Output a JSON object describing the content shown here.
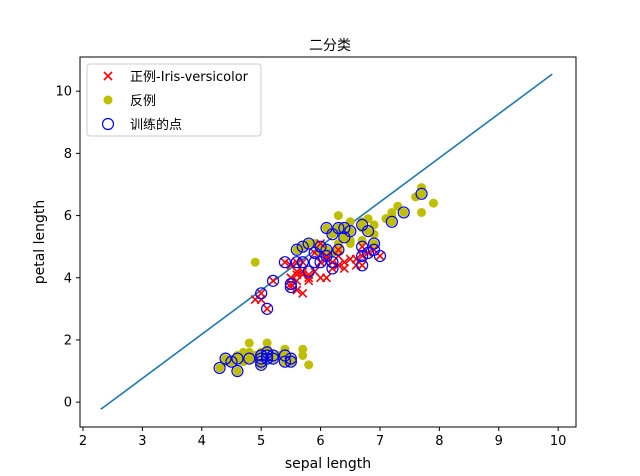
{
  "chart_data": {
    "type": "scatter",
    "title": "二分类",
    "xlabel": "sepal length",
    "ylabel": "petal length",
    "xlim": [
      1.95,
      10.3
    ],
    "ylim": [
      -0.8,
      11.1
    ],
    "xticks": [
      2,
      3,
      4,
      5,
      6,
      7,
      8,
      9,
      10
    ],
    "yticks": [
      0,
      2,
      4,
      6,
      8,
      10
    ],
    "grid": false,
    "legend_position": "top-left",
    "legend": [
      "正例-Iris-versicolor",
      "反例",
      "训练的点"
    ],
    "colors": {
      "positive": "#ff0000",
      "negative": "#bfbf00",
      "training": "#0000ff",
      "line": "#1f77b4"
    },
    "series": [
      {
        "name": "正例-Iris-versicolor",
        "marker": "x",
        "points": [
          [
            7.0,
            4.7
          ],
          [
            6.4,
            4.5
          ],
          [
            6.9,
            4.9
          ],
          [
            5.5,
            4.0
          ],
          [
            6.5,
            4.6
          ],
          [
            5.7,
            4.5
          ],
          [
            6.3,
            4.7
          ],
          [
            4.9,
            3.3
          ],
          [
            6.6,
            4.6
          ],
          [
            5.2,
            3.9
          ],
          [
            5.0,
            3.5
          ],
          [
            5.9,
            4.2
          ],
          [
            6.0,
            4.0
          ],
          [
            6.1,
            4.7
          ],
          [
            5.6,
            3.6
          ],
          [
            6.7,
            4.4
          ],
          [
            5.6,
            4.5
          ],
          [
            5.8,
            4.1
          ],
          [
            6.2,
            4.5
          ],
          [
            5.6,
            3.9
          ],
          [
            5.9,
            4.8
          ],
          [
            6.1,
            4.0
          ],
          [
            6.3,
            4.9
          ],
          [
            6.1,
            4.7
          ],
          [
            6.4,
            4.3
          ],
          [
            6.6,
            4.4
          ],
          [
            6.8,
            4.8
          ],
          [
            6.7,
            5.0
          ],
          [
            6.0,
            4.5
          ],
          [
            5.7,
            3.5
          ],
          [
            5.5,
            3.8
          ],
          [
            5.5,
            3.7
          ],
          [
            5.8,
            3.9
          ],
          [
            6.0,
            5.1
          ],
          [
            5.4,
            4.5
          ],
          [
            6.0,
            4.5
          ],
          [
            6.7,
            4.7
          ],
          [
            6.3,
            4.4
          ],
          [
            5.6,
            4.1
          ],
          [
            5.5,
            4.0
          ],
          [
            5.5,
            4.4
          ],
          [
            6.1,
            4.6
          ],
          [
            5.8,
            4.0
          ],
          [
            5.0,
            3.3
          ],
          [
            5.6,
            4.2
          ],
          [
            5.7,
            4.2
          ],
          [
            5.7,
            4.2
          ],
          [
            6.2,
            4.3
          ],
          [
            5.1,
            3.0
          ],
          [
            5.7,
            4.1
          ]
        ]
      },
      {
        "name": "反例",
        "marker": "o",
        "points": [
          [
            5.1,
            1.4
          ],
          [
            4.9,
            1.4
          ],
          [
            4.7,
            1.3
          ],
          [
            4.6,
            1.5
          ],
          [
            5.0,
            1.4
          ],
          [
            5.4,
            1.7
          ],
          [
            4.6,
            1.4
          ],
          [
            5.0,
            1.5
          ],
          [
            4.4,
            1.4
          ],
          [
            4.9,
            1.5
          ],
          [
            5.4,
            1.5
          ],
          [
            4.8,
            1.6
          ],
          [
            4.8,
            1.4
          ],
          [
            4.3,
            1.1
          ],
          [
            5.8,
            1.2
          ],
          [
            5.7,
            1.5
          ],
          [
            5.4,
            1.3
          ],
          [
            5.1,
            1.4
          ],
          [
            5.7,
            1.7
          ],
          [
            5.1,
            1.5
          ],
          [
            5.4,
            1.7
          ],
          [
            5.1,
            1.5
          ],
          [
            4.6,
            1.0
          ],
          [
            5.1,
            1.7
          ],
          [
            4.8,
            1.9
          ],
          [
            5.0,
            1.6
          ],
          [
            5.0,
            1.6
          ],
          [
            5.2,
            1.5
          ],
          [
            5.2,
            1.4
          ],
          [
            4.7,
            1.6
          ],
          [
            4.8,
            1.6
          ],
          [
            5.4,
            1.5
          ],
          [
            5.2,
            1.5
          ],
          [
            5.5,
            1.4
          ],
          [
            4.9,
            1.5
          ],
          [
            5.0,
            1.2
          ],
          [
            5.5,
            1.3
          ],
          [
            4.9,
            1.5
          ],
          [
            4.4,
            1.3
          ],
          [
            5.1,
            1.5
          ],
          [
            5.0,
            1.3
          ],
          [
            4.5,
            1.3
          ],
          [
            4.4,
            1.3
          ],
          [
            5.0,
            1.6
          ],
          [
            5.1,
            1.9
          ],
          [
            4.8,
            1.4
          ],
          [
            5.1,
            1.6
          ],
          [
            4.6,
            1.4
          ],
          [
            5.3,
            1.5
          ],
          [
            5.0,
            1.4
          ],
          [
            6.3,
            6.0
          ],
          [
            5.8,
            5.1
          ],
          [
            7.1,
            5.9
          ],
          [
            6.3,
            5.6
          ],
          [
            6.5,
            5.8
          ],
          [
            7.6,
            6.6
          ],
          [
            4.9,
            4.5
          ],
          [
            7.3,
            6.3
          ],
          [
            6.7,
            5.8
          ],
          [
            7.2,
            6.1
          ],
          [
            6.5,
            5.1
          ],
          [
            6.4,
            5.3
          ],
          [
            6.8,
            5.5
          ],
          [
            5.7,
            5.0
          ],
          [
            5.8,
            5.1
          ],
          [
            6.4,
            5.3
          ],
          [
            6.5,
            5.5
          ],
          [
            7.7,
            6.7
          ],
          [
            7.7,
            6.9
          ],
          [
            6.0,
            5.0
          ],
          [
            6.9,
            5.7
          ],
          [
            5.6,
            4.9
          ],
          [
            7.7,
            6.7
          ],
          [
            6.3,
            4.9
          ],
          [
            6.7,
            5.7
          ],
          [
            7.2,
            6.0
          ],
          [
            6.2,
            4.8
          ],
          [
            6.1,
            4.9
          ],
          [
            6.4,
            5.6
          ],
          [
            7.2,
            5.8
          ],
          [
            7.4,
            6.1
          ],
          [
            7.9,
            6.4
          ],
          [
            6.4,
            5.6
          ],
          [
            6.3,
            5.1
          ],
          [
            6.1,
            5.6
          ],
          [
            7.7,
            6.1
          ],
          [
            6.3,
            5.6
          ],
          [
            6.4,
            5.5
          ],
          [
            6.0,
            4.8
          ],
          [
            6.9,
            5.4
          ],
          [
            6.7,
            5.6
          ],
          [
            6.9,
            5.1
          ],
          [
            5.8,
            5.1
          ],
          [
            6.8,
            5.9
          ],
          [
            6.7,
            5.7
          ],
          [
            6.7,
            5.2
          ],
          [
            6.3,
            5.0
          ],
          [
            6.5,
            5.2
          ],
          [
            6.2,
            5.4
          ],
          [
            5.9,
            5.1
          ]
        ]
      },
      {
        "name": "训练的点",
        "marker": "open-circle",
        "points": [
          [
            4.3,
            1.1
          ],
          [
            4.4,
            1.4
          ],
          [
            4.5,
            1.3
          ],
          [
            4.6,
            1.0
          ],
          [
            4.6,
            1.4
          ],
          [
            4.8,
            1.4
          ],
          [
            5.0,
            1.2
          ],
          [
            5.0,
            1.3
          ],
          [
            5.0,
            1.4
          ],
          [
            5.0,
            1.5
          ],
          [
            5.1,
            1.4
          ],
          [
            5.1,
            1.5
          ],
          [
            5.1,
            1.6
          ],
          [
            5.2,
            1.4
          ],
          [
            5.2,
            1.5
          ],
          [
            5.4,
            1.3
          ],
          [
            5.4,
            1.5
          ],
          [
            5.5,
            1.3
          ],
          [
            5.5,
            1.4
          ],
          [
            5.0,
            3.5
          ],
          [
            5.1,
            3.0
          ],
          [
            5.2,
            3.9
          ],
          [
            5.4,
            4.5
          ],
          [
            5.5,
            3.7
          ],
          [
            5.5,
            3.8
          ],
          [
            5.6,
            4.5
          ],
          [
            5.7,
            4.5
          ],
          [
            5.8,
            4.2
          ],
          [
            5.9,
            4.5
          ],
          [
            6.0,
            4.5
          ],
          [
            6.1,
            4.7
          ],
          [
            6.2,
            4.5
          ],
          [
            6.7,
            4.4
          ],
          [
            6.7,
            4.7
          ],
          [
            6.7,
            5.0
          ],
          [
            6.8,
            4.8
          ],
          [
            6.9,
            4.9
          ],
          [
            7.0,
            4.7
          ],
          [
            6.2,
            4.3
          ],
          [
            5.6,
            4.9
          ],
          [
            5.7,
            5.0
          ],
          [
            5.8,
            5.1
          ],
          [
            5.9,
            4.8
          ],
          [
            6.0,
            5.0
          ],
          [
            6.1,
            4.9
          ],
          [
            6.1,
            5.6
          ],
          [
            6.2,
            5.4
          ],
          [
            6.3,
            5.6
          ],
          [
            6.3,
            4.9
          ],
          [
            6.4,
            5.6
          ],
          [
            6.4,
            5.3
          ],
          [
            6.5,
            5.5
          ],
          [
            6.7,
            5.7
          ],
          [
            6.8,
            5.5
          ],
          [
            6.9,
            5.1
          ],
          [
            7.2,
            5.8
          ],
          [
            7.4,
            6.1
          ],
          [
            7.7,
            6.7
          ]
        ]
      }
    ],
    "line": {
      "name": "decision line",
      "x": [
        2.3,
        9.9
      ],
      "y": [
        -0.23,
        10.55
      ]
    }
  }
}
